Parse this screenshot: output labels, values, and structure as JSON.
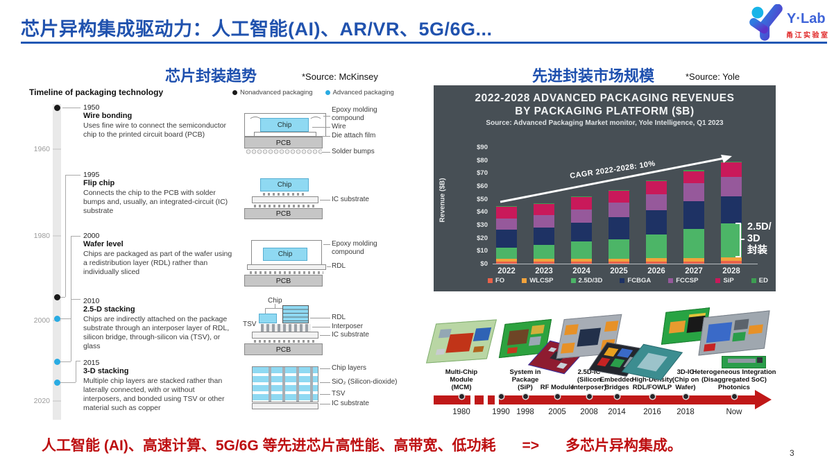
{
  "page": {
    "title": "芯片异构集成驱动力：人工智能(AI)、AR/VR、5G/6G...",
    "page_number": "3"
  },
  "logo": {
    "wordmark": "Y·Lab",
    "subtitle": "甬江实验室"
  },
  "left": {
    "heading": "芯片封装趋势",
    "source": "*Source: McKinsey",
    "timeline_title": "Timeline of packaging technology",
    "legend": [
      {
        "label": "Nonadvanced packaging",
        "color": "#1a1a1a"
      },
      {
        "label": "Advanced packaging",
        "color": "#29abe2"
      }
    ],
    "axis_years": [
      "1960",
      "1980",
      "2000",
      "2020"
    ],
    "entries": [
      {
        "year": "1950",
        "title": "Wire bonding",
        "desc": "Uses fine wire to connect the semiconductor chip to the printed circuit board (PCB)",
        "type": "nonadvanced"
      },
      {
        "year": "1995",
        "title": "Flip chip",
        "desc": "Connects the chip to the PCB with solder bumps and, usually, an integrated-circuit (IC) substrate",
        "type": "nonadvanced"
      },
      {
        "year": "2000",
        "title": "Wafer level",
        "desc": "Chips are packaged as part of the wafer using a redistribution layer (RDL) rather than individually sliced",
        "type": "advanced"
      },
      {
        "year": "2010",
        "title": "2.5-D stacking",
        "desc": "Chips are indirectly attached on the package substrate through an interposer layer of RDL, silicon bridge, through-silicon via (TSV), or glass",
        "type": "advanced"
      },
      {
        "year": "2015",
        "title": "3-D stacking",
        "desc": "Multiple chip layers are stacked rather than laterally connected, with or without interposers, and bonded using TSV or other material such as copper",
        "type": "advanced"
      }
    ],
    "diagrams": {
      "chip": "Chip",
      "pcb": "PCB",
      "d1": {
        "labels": [
          "Epoxy molding\ncompound",
          "Wire",
          "Die attach film",
          "Solder bumps"
        ]
      },
      "d2": {
        "labels": [
          "IC substrate"
        ]
      },
      "d3": {
        "labels": [
          "Epoxy molding\ncompound",
          "RDL"
        ]
      },
      "d4": {
        "chip_top": "Chip",
        "tsv": "TSV",
        "labels": [
          "RDL",
          "Interposer",
          "IC substrate"
        ]
      },
      "d5": {
        "labels": [
          "Chip layers",
          "SiO₂ (Silicon-dioxide)",
          "TSV",
          "IC substrate"
        ]
      }
    }
  },
  "right": {
    "heading": "先进封装市场规模",
    "source": "*Source: Yole",
    "evolution": {
      "years": [
        "1980",
        "1990",
        "1998",
        "2005",
        "2008",
        "2014",
        "2016",
        "2018",
        "Now"
      ],
      "items": [
        {
          "label": "Multi-Chip\nModule\n(MCM)",
          "art": "mcm-module-photo"
        },
        {
          "label": "System in\nPackage\n(SiP)",
          "art": "sip-module-photo"
        },
        {
          "label": "RF Module",
          "art": "rf-module-photo"
        },
        {
          "label": "2.5D-IC\n(Silicon\nInterposer)",
          "art": "25d-ic-photo"
        },
        {
          "label": "Embedded\nBridges",
          "art": "embedded-bridges-photo"
        },
        {
          "label": "High-Density\nRDL/FOWLP",
          "art": "rdl-fowlp-photo"
        },
        {
          "label": "3D-IC\n(Chip on\nWafer)",
          "art": "3d-ic-photo"
        },
        {
          "label": "Heterogeneous Integration\n(Disaggregated SoC)\nPhotonics",
          "art": "heterogeneous-photo"
        }
      ]
    }
  },
  "chart_data": {
    "type": "bar",
    "variant": "stacked",
    "title": "2022-2028 ADVANCED PACKAGING REVENUES\nBY PACKAGING PLATFORM ($B)",
    "subtitle": "Source: Advanced Packaging Market monitor, Yole Intelligence, Q1 2023",
    "ylabel": "Revenue ($B)",
    "ylim": [
      0,
      90
    ],
    "yticks": [
      "$0",
      "$10",
      "$20",
      "$30",
      "$40",
      "$50",
      "$60",
      "$70",
      "$80",
      "$90"
    ],
    "categories": [
      "2022",
      "2023",
      "2024",
      "2025",
      "2026",
      "2027",
      "2028"
    ],
    "series": [
      {
        "name": "FO",
        "color": "#e8624a",
        "values": [
          1.5,
          1.5,
          1.5,
          1.5,
          1.5,
          1.5,
          2
        ]
      },
      {
        "name": "WLCSP",
        "color": "#f2a33c",
        "values": [
          2,
          2,
          2,
          2.5,
          3,
          3,
          3
        ]
      },
      {
        "name": "2.5D/3D",
        "color": "#4cb567",
        "values": [
          9,
          11,
          13.5,
          15,
          18,
          22.5,
          26
        ]
      },
      {
        "name": "FCBGA",
        "color": "#1e3264",
        "values": [
          13.5,
          13.5,
          14.5,
          17,
          19,
          21,
          21
        ]
      },
      {
        "name": "FCCSP",
        "color": "#96599b",
        "values": [
          9,
          9.5,
          10.5,
          11,
          12,
          14,
          15
        ]
      },
      {
        "name": "SiP",
        "color": "#c9195a",
        "values": [
          9,
          9,
          9.5,
          9.5,
          10.5,
          9.5,
          11
        ]
      },
      {
        "name": "ED",
        "color": "#3d9e52",
        "values": [
          0.3,
          0.3,
          0.3,
          0.3,
          0.5,
          1,
          0.5
        ]
      }
    ],
    "annotation": "CAGR 2022-2028: 10%",
    "bracket_label": "2.5D/\n3D\n封装",
    "panel_bg": "#474f55",
    "grid": false,
    "legend_position": "bottom"
  },
  "footer": {
    "text": "人工智能 (AI)、高速计算、5G/6G 等先进芯片高性能、高带宽、低功耗",
    "arrow": "=>",
    "result": "多芯片异构集成。"
  }
}
